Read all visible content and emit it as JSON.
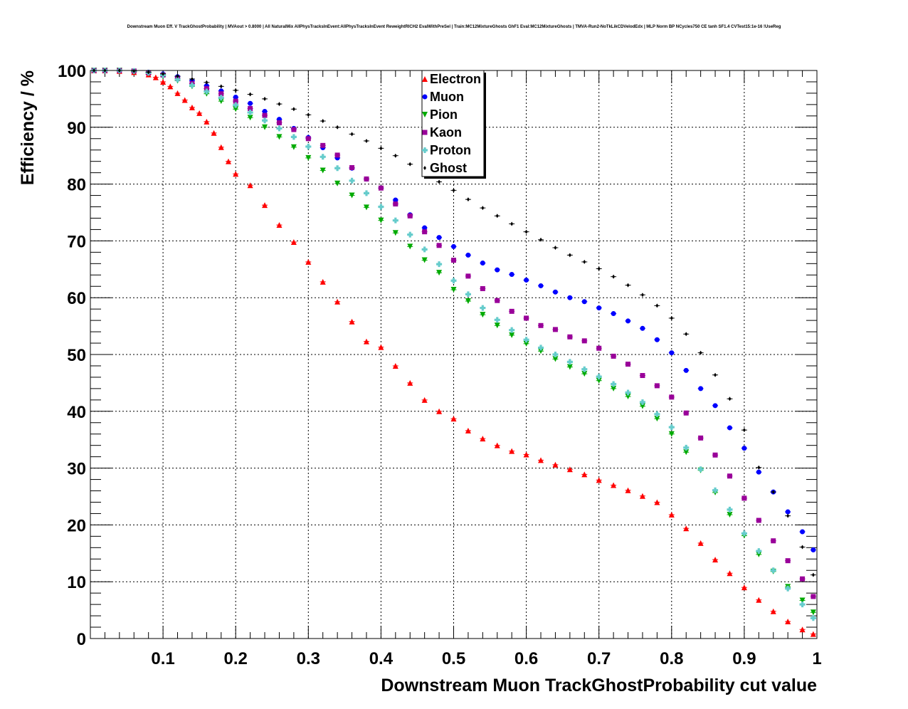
{
  "chart_data": {
    "type": "scatter",
    "title": "Downstream Muon Eff. V TrackGhostProbability | MVAout > 0.8000 | All NaturalMix AllPhysTracksInEvent:AllPhysTracksInEvent ReweightRICH2 EvalWithPreSel | Train:MC12MixtureGhosts GhF1 Eval:MC12MixtureGhosts | TMVA-Run2-NoTkLikCDVelodEdx | MLP Norm BP NCycles750 CE tanh SF1.4 CVTest15:1e-16 !UseReg",
    "xlabel": "Downstream Muon TrackGhostProbability cut value",
    "ylabel": "Efficiency / %",
    "xlim": [
      0,
      1
    ],
    "ylim": [
      0,
      100
    ],
    "x_ticks": [
      "0.1",
      "0.2",
      "0.3",
      "0.4",
      "0.5",
      "0.6",
      "0.7",
      "0.8",
      "0.9",
      "1"
    ],
    "y_ticks": [
      "0",
      "10",
      "20",
      "30",
      "40",
      "50",
      "60",
      "70",
      "80",
      "90",
      "100"
    ],
    "grid": true,
    "legend_position": "top-center",
    "x_points": [
      0.01,
      0.1,
      0.2,
      0.3,
      0.4,
      0.5,
      0.6,
      0.7,
      0.78,
      0.8,
      0.85,
      0.9,
      0.95,
      1.0
    ],
    "series": [
      {
        "name": "Electron",
        "color": "#ff0000",
        "marker": "triangle-up",
        "x": [
          0.005,
          0.02,
          0.04,
          0.06,
          0.08,
          0.09,
          0.1,
          0.11,
          0.12,
          0.13,
          0.14,
          0.15,
          0.16,
          0.17,
          0.18,
          0.19,
          0.2,
          0.22,
          0.24,
          0.26,
          0.28,
          0.3,
          0.32,
          0.34,
          0.36,
          0.38,
          0.4,
          0.42,
          0.44,
          0.46,
          0.48,
          0.5,
          0.52,
          0.54,
          0.56,
          0.58,
          0.6,
          0.62,
          0.64,
          0.66,
          0.68,
          0.7,
          0.72,
          0.74,
          0.76,
          0.78,
          0.8,
          0.82,
          0.84,
          0.86,
          0.88,
          0.9,
          0.92,
          0.94,
          0.96,
          0.98,
          0.995
        ],
        "y": [
          100,
          100,
          99.9,
          99.7,
          99.3,
          98.8,
          98,
          97.2,
          96,
          94.8,
          93.5,
          92.5,
          91,
          89,
          86.5,
          84,
          81.8,
          79.8,
          76.3,
          72.8,
          69.8,
          66.3,
          62.8,
          59.3,
          55.8,
          52.3,
          51.3,
          48,
          45,
          42,
          40,
          38.7,
          36.6,
          35.2,
          34,
          33,
          32.4,
          31.4,
          30.6,
          29.8,
          28.9,
          27.9,
          27,
          26.1,
          25.1,
          24,
          21.8,
          19.4,
          16.8,
          13.9,
          11.5,
          9,
          6.8,
          4.8,
          3,
          1.6,
          0.8
        ]
      },
      {
        "name": "Muon",
        "color": "#0000ff",
        "marker": "circle",
        "x": [
          0.005,
          0.02,
          0.04,
          0.06,
          0.08,
          0.1,
          0.12,
          0.14,
          0.16,
          0.18,
          0.2,
          0.22,
          0.24,
          0.26,
          0.28,
          0.3,
          0.32,
          0.34,
          0.36,
          0.38,
          0.4,
          0.42,
          0.44,
          0.46,
          0.48,
          0.5,
          0.52,
          0.54,
          0.56,
          0.58,
          0.6,
          0.62,
          0.64,
          0.66,
          0.68,
          0.7,
          0.72,
          0.74,
          0.76,
          0.78,
          0.8,
          0.82,
          0.84,
          0.86,
          0.88,
          0.9,
          0.92,
          0.94,
          0.96,
          0.98,
          0.995
        ],
        "y": [
          100,
          100,
          100,
          99.9,
          99.7,
          99.4,
          98.9,
          98.2,
          97.3,
          96.4,
          95.3,
          94.2,
          92.8,
          91.4,
          89.8,
          88.2,
          86.4,
          84.6,
          82.8,
          80.9,
          79.3,
          77.2,
          74.6,
          72.3,
          70.6,
          69,
          67.5,
          66.1,
          64.9,
          64.1,
          63.1,
          62.1,
          61,
          60,
          59.3,
          58.2,
          57.2,
          55.9,
          54.6,
          52.6,
          50.3,
          47.2,
          44,
          41,
          37.1,
          33.5,
          29.3,
          25.8,
          22.3,
          18.8,
          15.6
        ]
      },
      {
        "name": "Pion",
        "color": "#00aa00",
        "marker": "triangle-down",
        "x": [
          0.005,
          0.02,
          0.04,
          0.06,
          0.08,
          0.1,
          0.12,
          0.14,
          0.16,
          0.18,
          0.2,
          0.22,
          0.24,
          0.26,
          0.28,
          0.3,
          0.32,
          0.34,
          0.36,
          0.38,
          0.4,
          0.42,
          0.44,
          0.46,
          0.48,
          0.5,
          0.52,
          0.54,
          0.56,
          0.58,
          0.6,
          0.62,
          0.64,
          0.66,
          0.68,
          0.7,
          0.72,
          0.74,
          0.76,
          0.78,
          0.8,
          0.82,
          0.84,
          0.86,
          0.88,
          0.9,
          0.92,
          0.94,
          0.96,
          0.98,
          0.995
        ],
        "y": [
          100,
          100,
          100,
          99.8,
          99.5,
          99,
          98.2,
          97.2,
          95.9,
          94.6,
          93.2,
          91.7,
          90,
          88.3,
          86.5,
          84.6,
          82.4,
          80.1,
          78,
          75.9,
          73.6,
          71.4,
          69,
          66.6,
          64.4,
          61.4,
          59.4,
          57,
          55.1,
          53.4,
          51.9,
          50.6,
          49.2,
          47.8,
          46.6,
          45.4,
          44,
          42.6,
          40.9,
          38.7,
          36,
          32.8,
          29.6,
          25.7,
          21.8,
          18.1,
          14.8,
          11.8,
          9.1,
          6.7,
          4.6
        ]
      },
      {
        "name": "Kaon",
        "color": "#990099",
        "marker": "square",
        "x": [
          0.005,
          0.02,
          0.04,
          0.06,
          0.08,
          0.1,
          0.12,
          0.14,
          0.16,
          0.18,
          0.2,
          0.22,
          0.24,
          0.26,
          0.28,
          0.3,
          0.32,
          0.34,
          0.36,
          0.38,
          0.4,
          0.42,
          0.44,
          0.46,
          0.48,
          0.5,
          0.52,
          0.54,
          0.56,
          0.58,
          0.6,
          0.62,
          0.64,
          0.66,
          0.68,
          0.7,
          0.72,
          0.74,
          0.76,
          0.78,
          0.8,
          0.82,
          0.84,
          0.86,
          0.88,
          0.9,
          0.92,
          0.94,
          0.96,
          0.98,
          0.995
        ],
        "y": [
          100,
          100,
          100,
          99.9,
          99.6,
          99.2,
          98.6,
          97.7,
          96.8,
          95.9,
          94.6,
          93.3,
          92.1,
          90.8,
          89.6,
          88,
          86.8,
          85.1,
          82.9,
          80.9,
          79.3,
          76.5,
          74.4,
          71.6,
          69.2,
          66.6,
          63.8,
          61.6,
          59.5,
          57.6,
          56.4,
          55.1,
          54.4,
          53.1,
          52.4,
          51.1,
          49.7,
          48.3,
          46.3,
          44.5,
          42.5,
          39.7,
          35.3,
          32.3,
          28.6,
          24.7,
          20.8,
          17.2,
          13.7,
          10.5,
          7.4
        ]
      },
      {
        "name": "Proton",
        "color": "#66cccc",
        "marker": "cross",
        "x": [
          0.005,
          0.02,
          0.04,
          0.06,
          0.08,
          0.1,
          0.12,
          0.14,
          0.16,
          0.18,
          0.2,
          0.22,
          0.24,
          0.26,
          0.28,
          0.3,
          0.32,
          0.34,
          0.36,
          0.38,
          0.4,
          0.42,
          0.44,
          0.46,
          0.48,
          0.5,
          0.52,
          0.54,
          0.56,
          0.58,
          0.6,
          0.62,
          0.64,
          0.66,
          0.68,
          0.7,
          0.72,
          0.74,
          0.76,
          0.78,
          0.8,
          0.82,
          0.84,
          0.86,
          0.88,
          0.9,
          0.92,
          0.94,
          0.96,
          0.98,
          0.995
        ],
        "y": [
          100,
          100,
          100,
          99.9,
          99.6,
          99.2,
          98.4,
          97.4,
          96.3,
          95.2,
          93.9,
          92.6,
          91.2,
          89.8,
          88.3,
          86.6,
          84.8,
          82.8,
          80.6,
          78.4,
          76,
          73.6,
          71.1,
          68.5,
          65.9,
          63,
          60.6,
          58.2,
          56.1,
          54.3,
          52.6,
          51.2,
          50,
          48.7,
          47.4,
          46.1,
          44.8,
          43.3,
          41.6,
          39.5,
          37.2,
          33.6,
          29.8,
          26.1,
          22.7,
          18.5,
          15.4,
          12,
          8.8,
          6,
          3.6
        ]
      },
      {
        "name": "Ghost",
        "color": "#000000",
        "marker": "star",
        "x": [
          0.005,
          0.02,
          0.04,
          0.06,
          0.08,
          0.1,
          0.12,
          0.14,
          0.16,
          0.18,
          0.2,
          0.22,
          0.24,
          0.26,
          0.28,
          0.3,
          0.32,
          0.34,
          0.36,
          0.38,
          0.4,
          0.42,
          0.44,
          0.46,
          0.48,
          0.5,
          0.52,
          0.54,
          0.56,
          0.58,
          0.6,
          0.62,
          0.64,
          0.66,
          0.68,
          0.7,
          0.72,
          0.74,
          0.76,
          0.78,
          0.8,
          0.82,
          0.84,
          0.86,
          0.88,
          0.9,
          0.92,
          0.94,
          0.96,
          0.98,
          0.995
        ],
        "y": [
          100,
          100,
          100,
          99.9,
          99.7,
          99.4,
          99,
          98.5,
          97.9,
          97.2,
          96.5,
          95.8,
          95,
          94.1,
          93.2,
          92.2,
          91.1,
          90,
          88.8,
          87.6,
          86.3,
          85,
          83.5,
          82,
          80.4,
          78.9,
          77.3,
          75.8,
          74.4,
          73,
          71.6,
          70.2,
          68.8,
          67.5,
          66.3,
          65.1,
          63.7,
          62.2,
          60.5,
          58.6,
          56.4,
          53.6,
          50.3,
          46.4,
          42.2,
          36.7,
          30.1,
          25.8,
          21.6,
          16.1,
          11.2
        ]
      }
    ]
  }
}
